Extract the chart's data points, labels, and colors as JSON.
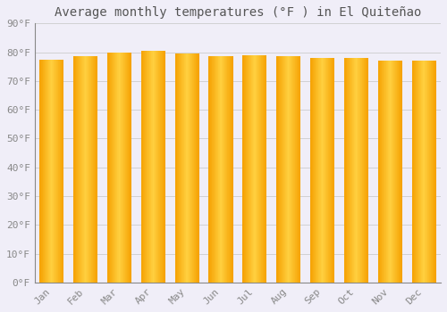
{
  "title": "Average monthly temperatures (°F ) in El Quiteñao",
  "months": [
    "Jan",
    "Feb",
    "Mar",
    "Apr",
    "May",
    "Jun",
    "Jul",
    "Aug",
    "Sep",
    "Oct",
    "Nov",
    "Dec"
  ],
  "values": [
    77.5,
    78.5,
    80.0,
    80.5,
    79.5,
    78.5,
    79.0,
    78.5,
    78.0,
    78.0,
    77.0,
    77.0
  ],
  "bar_color_center": "#FFD040",
  "bar_color_edge": "#F5A000",
  "bar_outline_color": "#CC8800",
  "background_color": "#f0eef8",
  "plot_bg_color": "#f0eef8",
  "grid_color": "#cccccc",
  "ytick_labels": [
    "0°F",
    "10°F",
    "20°F",
    "30°F",
    "40°F",
    "50°F",
    "60°F",
    "70°F",
    "80°F",
    "90°F"
  ],
  "ytick_values": [
    0,
    10,
    20,
    30,
    40,
    50,
    60,
    70,
    80,
    90
  ],
  "ylim": [
    0,
    90
  ],
  "title_fontsize": 10,
  "tick_fontsize": 8,
  "tick_color": "#888888",
  "label_color": "#888888",
  "title_color": "#555555",
  "spine_color": "#888888"
}
